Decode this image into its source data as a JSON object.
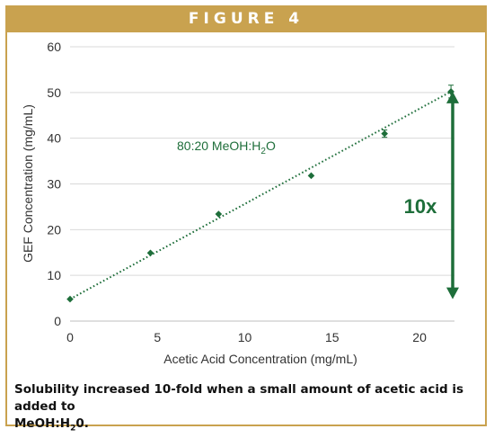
{
  "figure_label": "FIGURE 4",
  "caption": {
    "line1": "Solubility increased 10-fold when a small amount of acetic acid is added to",
    "line2_pre": "MeOH:H",
    "line2_sub": "2",
    "line2_post": "0."
  },
  "colors": {
    "accent": "#c9a24f",
    "series": "#1e6e3a",
    "grid": "#d9d9d9"
  },
  "chart_data": {
    "type": "scatter",
    "xlabel": "Acetic Acid Concentration (mg/mL)",
    "ylabel": "GEF Concentration (mg/mL)",
    "xlim": [
      0,
      22
    ],
    "ylim": [
      0,
      60
    ],
    "x_ticks": [
      0,
      5,
      10,
      15,
      20
    ],
    "y_ticks": [
      0,
      10,
      20,
      30,
      40,
      50,
      60
    ],
    "grid": true,
    "series": [
      {
        "x": [
          0,
          4.6,
          8.5,
          13.8,
          18,
          21.8
        ],
        "y": [
          4.8,
          14.9,
          23.4,
          31.8,
          41.0,
          50.2
        ],
        "error": [
          0,
          0,
          0,
          0,
          0.8,
          1.4
        ],
        "marker": "diamond",
        "trendline": {
          "type": "linear",
          "style": "dotted",
          "from": [
            0,
            4.8
          ],
          "to": [
            21.8,
            50.2
          ]
        }
      }
    ],
    "annotations": {
      "solvent_pre": "80:20 MeOH:H",
      "solvent_sub": "2",
      "solvent_post": "O",
      "fold_label": "10x",
      "arrow": {
        "from_y": 5,
        "to_y": 50
      }
    }
  }
}
